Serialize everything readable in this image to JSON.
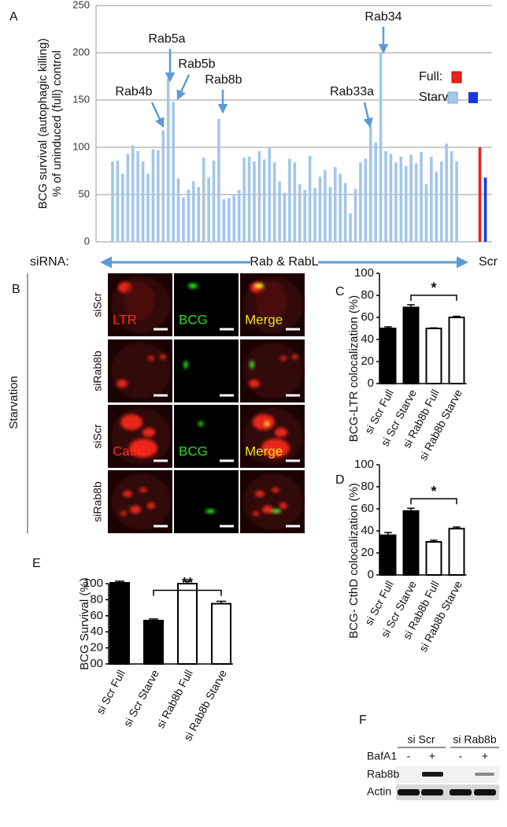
{
  "panel_labels": [
    "A",
    "B",
    "C",
    "D",
    "E",
    "F"
  ],
  "chart_data": [
    {
      "type": "bar",
      "ylabel": [
        "BCG survival  (autophagic killing)",
        "% of uninduced (full) control"
      ],
      "xlabel_prefix": "siRNA:",
      "xlabel": "Rab & RabL",
      "categories": [
        null,
        null,
        null,
        null,
        null,
        null,
        null,
        null,
        null,
        null,
        null,
        null,
        null,
        null,
        null,
        null,
        null,
        null,
        null,
        null,
        null,
        null,
        null,
        null,
        null,
        null,
        null,
        null,
        null,
        null,
        null,
        null,
        null,
        null,
        null,
        null,
        null,
        null,
        null,
        null,
        null,
        null,
        null,
        null,
        null,
        null,
        null,
        null,
        null,
        null,
        null,
        null,
        null,
        null,
        null,
        null,
        null,
        null,
        null,
        null,
        null,
        null,
        null,
        null,
        null,
        null,
        null,
        null,
        null,
        "Scr"
      ],
      "series": [
        {
          "name": "Full:",
          "color": "#e8231c",
          "values": [
            null,
            null,
            null,
            null,
            null,
            null,
            null,
            null,
            null,
            null,
            null,
            null,
            null,
            null,
            null,
            null,
            null,
            null,
            null,
            null,
            null,
            null,
            null,
            null,
            null,
            null,
            null,
            null,
            null,
            null,
            null,
            null,
            null,
            null,
            null,
            null,
            null,
            null,
            null,
            null,
            null,
            null,
            null,
            null,
            null,
            null,
            null,
            null,
            null,
            null,
            null,
            null,
            null,
            null,
            null,
            null,
            null,
            null,
            null,
            null,
            null,
            null,
            null,
            null,
            null,
            null,
            null,
            null,
            null,
            100
          ]
        },
        {
          "name": "Starv:",
          "color": "#a3c6ec",
          "scr_color": "#1638e6",
          "values": [
            85,
            86,
            72,
            93,
            102,
            96,
            85,
            72,
            98,
            97,
            118,
            173,
            148,
            67,
            47,
            55,
            64,
            58,
            89,
            68,
            86,
            130,
            45,
            46,
            50,
            55,
            89,
            90,
            85,
            96,
            87,
            100,
            84,
            64,
            52,
            88,
            84,
            61,
            55,
            91,
            57,
            69,
            76,
            58,
            79,
            72,
            62,
            30,
            56,
            84,
            88,
            122,
            105,
            200,
            96,
            93,
            84,
            90,
            80,
            92,
            83,
            95,
            61,
            90,
            74,
            85,
            104,
            96,
            85,
            68
          ]
        }
      ],
      "annotations": [
        "Rab4b",
        "Rab5a",
        "Rab5b",
        "Rab8b",
        "Rab33a",
        "Rab34"
      ],
      "ylim": [
        0,
        250
      ],
      "yticks": [
        0,
        50,
        100,
        150,
        200,
        250
      ],
      "grid": true
    },
    {
      "type": "bar",
      "ylabel": "BCG-LTR colocalization (%)",
      "categories": [
        "si Scr Full",
        "si Scr Starve",
        "si Rab8b Full",
        "si Rab8b Starve"
      ],
      "values": [
        50,
        69,
        50,
        60
      ],
      "errors": [
        1.5,
        2.5,
        0.5,
        1
      ],
      "colors": [
        "#000000",
        "#000000",
        "#ffffff",
        "#ffffff"
      ],
      "significance": "*",
      "ylim": [
        0,
        100
      ],
      "yticks": [
        0,
        20,
        40,
        60,
        80,
        100
      ]
    },
    {
      "type": "bar",
      "ylabel": "BCG- CthD colocalization (%)",
      "categories": [
        "si Scr Full",
        "si Scr Starve",
        "si Rab8b Full",
        "si Rab8b Starve"
      ],
      "values": [
        36,
        58,
        30,
        42
      ],
      "errors": [
        2.5,
        2.5,
        1.5,
        1.5
      ],
      "colors": [
        "#000000",
        "#000000",
        "#ffffff",
        "#ffffff"
      ],
      "significance": "*",
      "ylim": [
        0,
        100
      ],
      "yticks": [
        0,
        20,
        40,
        60,
        80,
        100
      ]
    },
    {
      "type": "bar",
      "ylabel": "BCG Survival (%)",
      "categories": [
        "si Scr Full",
        "si Scr Starve",
        "si Rab8b Full",
        "si Rab8b Starve"
      ],
      "values": [
        101,
        54,
        100,
        75
      ],
      "errors": [
        2,
        2,
        3,
        3
      ],
      "colors": [
        "#000000",
        "#000000",
        "#ffffff",
        "#ffffff"
      ],
      "significance": "**",
      "ylim": [
        0,
        100
      ],
      "yticks": [
        {
          "value": 0,
          "label": "00"
        },
        20,
        40,
        60,
        80,
        100
      ]
    }
  ],
  "microscopy": {
    "condition": "Starvation",
    "row_labels": [
      "siScr",
      "siRab8b",
      "siScr",
      "siRab8b"
    ],
    "channel_labels": [
      [
        "LTR",
        "BCG",
        "Merge"
      ],
      [
        "CathD",
        "BCG",
        "Merge"
      ]
    ]
  },
  "blot": {
    "groups": [
      "si Scr",
      "si Rab8b"
    ],
    "treatment": "BafA1",
    "signs": [
      "-",
      "+",
      "-",
      "+"
    ],
    "rows": [
      "Rab8b",
      "Actin"
    ]
  }
}
